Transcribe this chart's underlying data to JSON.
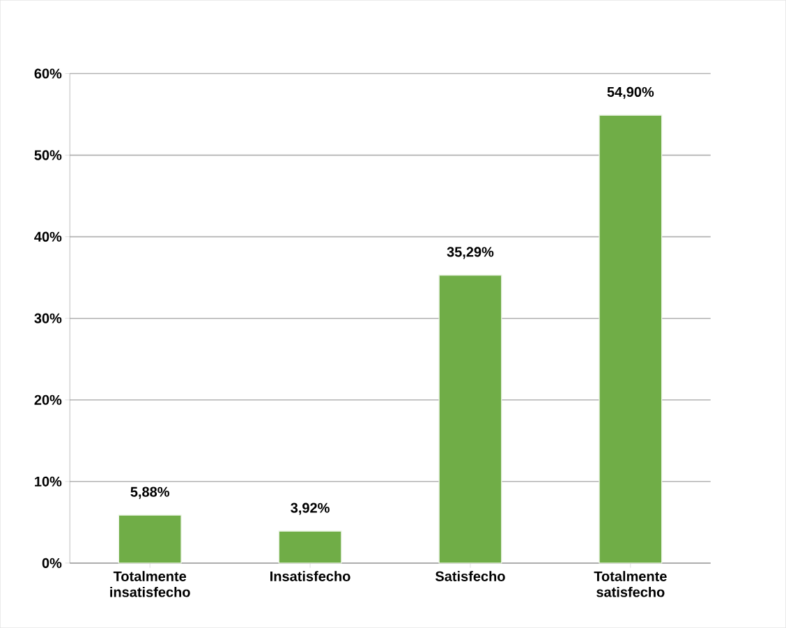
{
  "chart_data": {
    "type": "bar",
    "categories": [
      "Totalmente insatisfecho",
      "Insatisfecho",
      "Satisfecho",
      "Totalmente satisfecho"
    ],
    "values": [
      5.88,
      3.92,
      35.29,
      54.9
    ],
    "value_labels": [
      "5,88%",
      "3,92%",
      "35,29%",
      "54,90%"
    ],
    "color": "#70ad47",
    "ylim": [
      0,
      60
    ],
    "yticks": [
      {
        "value": 0,
        "label": "0%"
      },
      {
        "value": 10,
        "label": "10%"
      },
      {
        "value": 20,
        "label": "20%"
      },
      {
        "value": 30,
        "label": "30%"
      },
      {
        "value": 40,
        "label": "40%"
      },
      {
        "value": 50,
        "label": "50%"
      },
      {
        "value": 60,
        "label": "60%"
      }
    ],
    "grid": "y"
  }
}
